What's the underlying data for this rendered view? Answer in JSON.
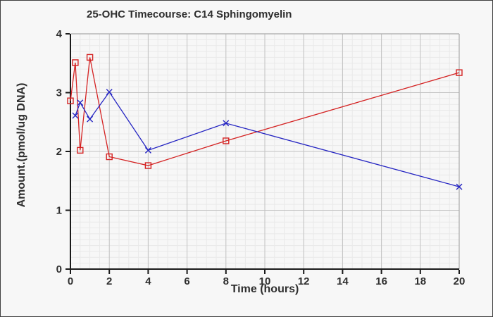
{
  "figure": {
    "background": "#f7f7f7",
    "border_color": "#3f3f3f",
    "text_color": "#2e2e2e",
    "axis_color": "#1a1a1a",
    "frame_color": "#a9a9a9"
  },
  "chart_data": {
    "type": "line",
    "title": "25-OHC Timecourse: C14 Sphingomyelin",
    "xlabel": "Time (hours)",
    "ylabel": "Amount.(pmol/ug DNA)",
    "xlim": [
      0,
      20
    ],
    "ylim": [
      0,
      4
    ],
    "x_ticks": [
      0,
      2,
      4,
      6,
      8,
      10,
      12,
      14,
      16,
      18,
      20
    ],
    "y_ticks": [
      0,
      1,
      2,
      3,
      4
    ],
    "grid": {
      "major_color": "#c2c2c2",
      "minor_color": "#e9e9e9",
      "x_minor_step": 0.5,
      "y_minor_step": 0.1
    },
    "legend_position": "none",
    "series": [
      {
        "name": "red-open-square-series",
        "color": "#d42222",
        "marker": "open-square",
        "x": [
          0,
          0.25,
          0.5,
          1,
          2,
          4,
          8,
          20
        ],
        "y": [
          2.86,
          3.51,
          2.02,
          3.6,
          1.91,
          1.76,
          2.18,
          3.34
        ]
      },
      {
        "name": "blue-x-series",
        "color": "#2424c2",
        "marker": "x",
        "x": [
          0.25,
          0.5,
          1,
          2,
          4,
          8,
          20
        ],
        "y": [
          2.61,
          2.83,
          2.55,
          3.01,
          2.02,
          2.48,
          1.4
        ]
      }
    ]
  }
}
